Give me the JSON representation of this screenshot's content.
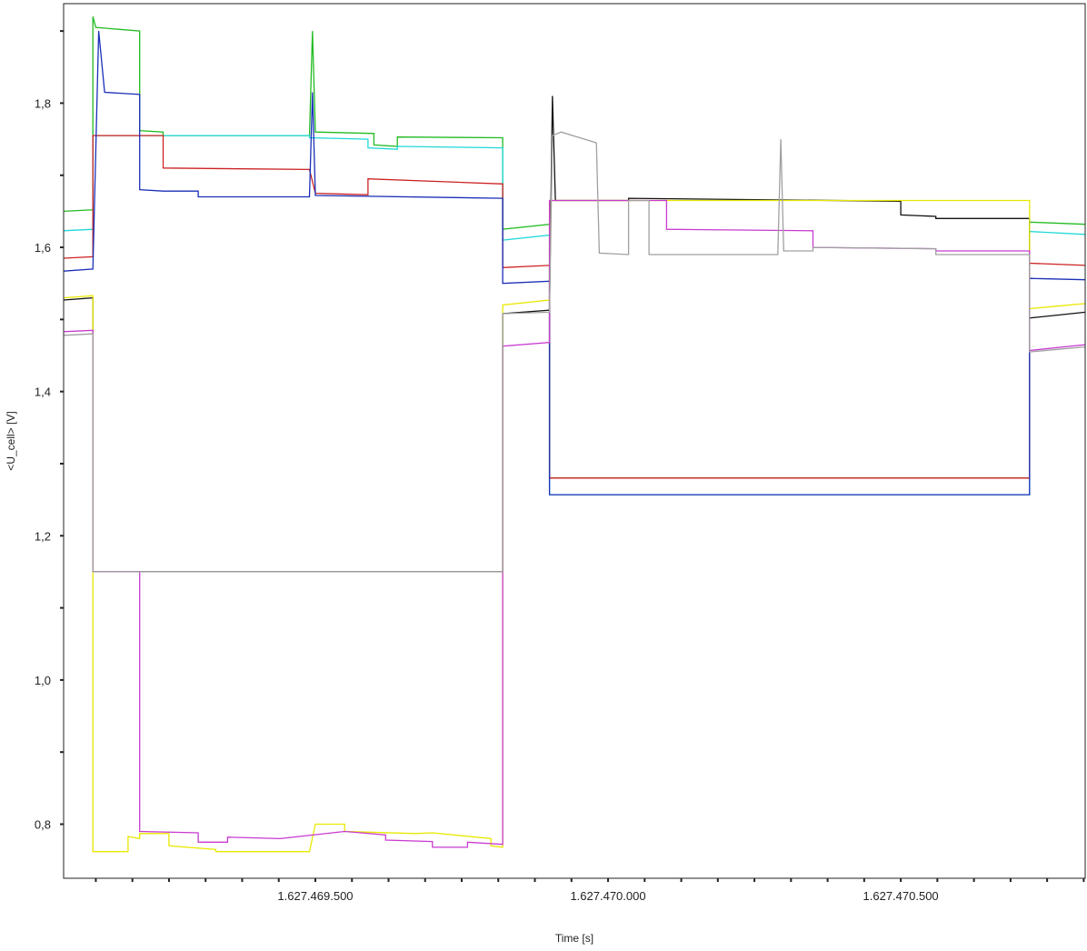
{
  "chart_data": {
    "type": "line",
    "title": "",
    "xlabel": "Time [s]",
    "ylabel": "<U_cell> [V]",
    "xlim": [
      1627469.07,
      1627470.815
    ],
    "ylim": [
      0.725,
      1.938
    ],
    "grid": false,
    "legend": "none",
    "x_ticks": [
      {
        "value": 1627469.5,
        "label": "1.627.469.500"
      },
      {
        "value": 1627470.0,
        "label": "1.627.470.000"
      },
      {
        "value": 1627470.5,
        "label": "1.627.470.500"
      }
    ],
    "x_minor_step": 0.0625,
    "y_ticks": [
      {
        "value": 0.8,
        "label": "0,8"
      },
      {
        "value": 1.0,
        "label": "1,0"
      },
      {
        "value": 1.2,
        "label": "1,2"
      },
      {
        "value": 1.4,
        "label": "1,4"
      },
      {
        "value": 1.6,
        "label": "1,6"
      },
      {
        "value": 1.8,
        "label": "1,8"
      }
    ],
    "y_minor_step": 0.1,
    "series": [
      {
        "color": "#22bb22",
        "points": [
          [
            1627469.07,
            1.65
          ],
          [
            1627469.12,
            1.652
          ],
          [
            1627469.12,
            1.92
          ],
          [
            1627469.125,
            1.905
          ],
          [
            1627469.2,
            1.9
          ],
          [
            1627469.2,
            1.762
          ],
          [
            1627469.24,
            1.76
          ],
          [
            1627469.24,
            1.755
          ],
          [
            1627469.49,
            1.755
          ],
          [
            1627469.495,
            1.9
          ],
          [
            1627469.5,
            1.76
          ],
          [
            1627469.6,
            1.758
          ],
          [
            1627469.6,
            1.742
          ],
          [
            1627469.64,
            1.74
          ],
          [
            1627469.64,
            1.753
          ],
          [
            1627469.82,
            1.752
          ],
          [
            1627469.82,
            1.625
          ],
          [
            1627469.9,
            1.632
          ],
          [
            1627469.9,
            1.28
          ],
          [
            1627470.72,
            1.28
          ],
          [
            1627470.72,
            1.635
          ],
          [
            1627470.815,
            1.632
          ]
        ]
      },
      {
        "color": "#20d8d8",
        "points": [
          [
            1627469.07,
            1.623
          ],
          [
            1627469.12,
            1.625
          ],
          [
            1627469.12,
            1.755
          ],
          [
            1627469.49,
            1.755
          ],
          [
            1627469.49,
            1.752
          ],
          [
            1627469.59,
            1.75
          ],
          [
            1627469.59,
            1.738
          ],
          [
            1627469.64,
            1.736
          ],
          [
            1627469.64,
            1.74
          ],
          [
            1627469.82,
            1.738
          ],
          [
            1627469.82,
            1.61
          ],
          [
            1627469.9,
            1.617
          ],
          [
            1627469.9,
            1.257
          ],
          [
            1627470.72,
            1.257
          ],
          [
            1627470.72,
            1.622
          ],
          [
            1627470.815,
            1.618
          ]
        ]
      },
      {
        "color": "#cc2222",
        "points": [
          [
            1627469.07,
            1.585
          ],
          [
            1627469.12,
            1.587
          ],
          [
            1627469.12,
            1.755
          ],
          [
            1627469.24,
            1.755
          ],
          [
            1627469.24,
            1.71
          ],
          [
            1627469.49,
            1.708
          ],
          [
            1627469.5,
            1.675
          ],
          [
            1627469.59,
            1.673
          ],
          [
            1627469.59,
            1.695
          ],
          [
            1627469.82,
            1.688
          ],
          [
            1627469.82,
            1.572
          ],
          [
            1627469.9,
            1.575
          ],
          [
            1627469.9,
            1.28
          ],
          [
            1627470.72,
            1.28
          ],
          [
            1627470.72,
            1.578
          ],
          [
            1627470.815,
            1.575
          ]
        ]
      },
      {
        "color": "#1a2fb8",
        "points": [
          [
            1627469.07,
            1.567
          ],
          [
            1627469.12,
            1.57
          ],
          [
            1627469.13,
            1.9
          ],
          [
            1627469.14,
            1.815
          ],
          [
            1627469.2,
            1.812
          ],
          [
            1627469.2,
            1.68
          ],
          [
            1627469.24,
            1.678
          ],
          [
            1627469.3,
            1.678
          ],
          [
            1627469.3,
            1.67
          ],
          [
            1627469.49,
            1.67
          ],
          [
            1627469.495,
            1.815
          ],
          [
            1627469.5,
            1.672
          ],
          [
            1627469.82,
            1.668
          ],
          [
            1627469.82,
            1.55
          ],
          [
            1627469.9,
            1.553
          ],
          [
            1627469.9,
            1.257
          ],
          [
            1627470.72,
            1.257
          ],
          [
            1627470.72,
            1.557
          ],
          [
            1627470.815,
            1.555
          ]
        ]
      },
      {
        "color": "#111111",
        "points": [
          [
            1627469.07,
            1.527
          ],
          [
            1627469.12,
            1.53
          ],
          [
            1627469.12,
            1.15
          ],
          [
            1627469.82,
            1.15
          ],
          [
            1627469.82,
            1.508
          ],
          [
            1627469.9,
            1.513
          ],
          [
            1627469.905,
            1.81
          ],
          [
            1627469.91,
            1.665
          ],
          [
            1627470.035,
            1.665
          ],
          [
            1627470.035,
            1.668
          ],
          [
            1627470.5,
            1.664
          ],
          [
            1627470.5,
            1.645
          ],
          [
            1627470.56,
            1.643
          ],
          [
            1627470.56,
            1.64
          ],
          [
            1627470.72,
            1.64
          ],
          [
            1627470.72,
            1.502
          ],
          [
            1627470.815,
            1.51
          ]
        ]
      },
      {
        "color": "#e8e800",
        "points": [
          [
            1627469.07,
            1.53
          ],
          [
            1627469.12,
            1.533
          ],
          [
            1627469.12,
            1.15
          ],
          [
            1627469.12,
            0.762
          ],
          [
            1627469.18,
            0.762
          ],
          [
            1627469.18,
            0.783
          ],
          [
            1627469.2,
            0.78
          ],
          [
            1627469.2,
            0.787
          ],
          [
            1627469.25,
            0.787
          ],
          [
            1627469.25,
            0.77
          ],
          [
            1627469.33,
            0.765
          ],
          [
            1627469.33,
            0.762
          ],
          [
            1627469.49,
            0.762
          ],
          [
            1627469.5,
            0.8
          ],
          [
            1627469.55,
            0.8
          ],
          [
            1627469.55,
            0.79
          ],
          [
            1627469.67,
            0.787
          ],
          [
            1627469.7,
            0.788
          ],
          [
            1627469.8,
            0.78
          ],
          [
            1627469.8,
            0.77
          ],
          [
            1627469.82,
            0.768
          ],
          [
            1627469.82,
            1.52
          ],
          [
            1627469.9,
            1.527
          ],
          [
            1627469.9,
            1.665
          ],
          [
            1627470.5,
            1.665
          ],
          [
            1627470.56,
            1.665
          ],
          [
            1627470.72,
            1.665
          ],
          [
            1627470.72,
            1.515
          ],
          [
            1627470.815,
            1.522
          ]
        ]
      },
      {
        "color": "#c83ad0",
        "points": [
          [
            1627469.07,
            1.483
          ],
          [
            1627469.12,
            1.485
          ],
          [
            1627469.12,
            1.15
          ],
          [
            1627469.2,
            1.15
          ],
          [
            1627469.2,
            0.79
          ],
          [
            1627469.3,
            0.788
          ],
          [
            1627469.3,
            0.775
          ],
          [
            1627469.35,
            0.775
          ],
          [
            1627469.35,
            0.782
          ],
          [
            1627469.44,
            0.78
          ],
          [
            1627469.55,
            0.79
          ],
          [
            1627469.62,
            0.785
          ],
          [
            1627469.62,
            0.778
          ],
          [
            1627469.7,
            0.776
          ],
          [
            1627469.7,
            0.768
          ],
          [
            1627469.76,
            0.768
          ],
          [
            1627469.76,
            0.775
          ],
          [
            1627469.82,
            0.772
          ],
          [
            1627469.82,
            1.463
          ],
          [
            1627469.9,
            1.468
          ],
          [
            1627469.9,
            1.665
          ],
          [
            1627470.1,
            1.665
          ],
          [
            1627470.1,
            1.625
          ],
          [
            1627470.35,
            1.623
          ],
          [
            1627470.35,
            1.6
          ],
          [
            1627470.56,
            1.598
          ],
          [
            1627470.56,
            1.595
          ],
          [
            1627470.72,
            1.595
          ],
          [
            1627470.72,
            1.457
          ],
          [
            1627470.815,
            1.465
          ]
        ]
      },
      {
        "color": "#a0a0a0",
        "points": [
          [
            1627469.07,
            1.478
          ],
          [
            1627469.12,
            1.48
          ],
          [
            1627469.12,
            1.15
          ],
          [
            1627469.82,
            1.15
          ],
          [
            1627469.82,
            1.508
          ],
          [
            1627469.9,
            1.51
          ],
          [
            1627469.905,
            1.755
          ],
          [
            1627469.92,
            1.76
          ],
          [
            1627469.98,
            1.745
          ],
          [
            1627469.985,
            1.592
          ],
          [
            1627470.035,
            1.59
          ],
          [
            1627470.035,
            1.665
          ],
          [
            1627470.07,
            1.665
          ],
          [
            1627470.07,
            1.59
          ],
          [
            1627470.29,
            1.59
          ],
          [
            1627470.295,
            1.75
          ],
          [
            1627470.3,
            1.595
          ],
          [
            1627470.35,
            1.595
          ],
          [
            1627470.35,
            1.6
          ],
          [
            1627470.56,
            1.598
          ],
          [
            1627470.56,
            1.59
          ],
          [
            1627470.72,
            1.59
          ],
          [
            1627470.72,
            1.455
          ],
          [
            1627470.815,
            1.462
          ]
        ]
      }
    ]
  }
}
